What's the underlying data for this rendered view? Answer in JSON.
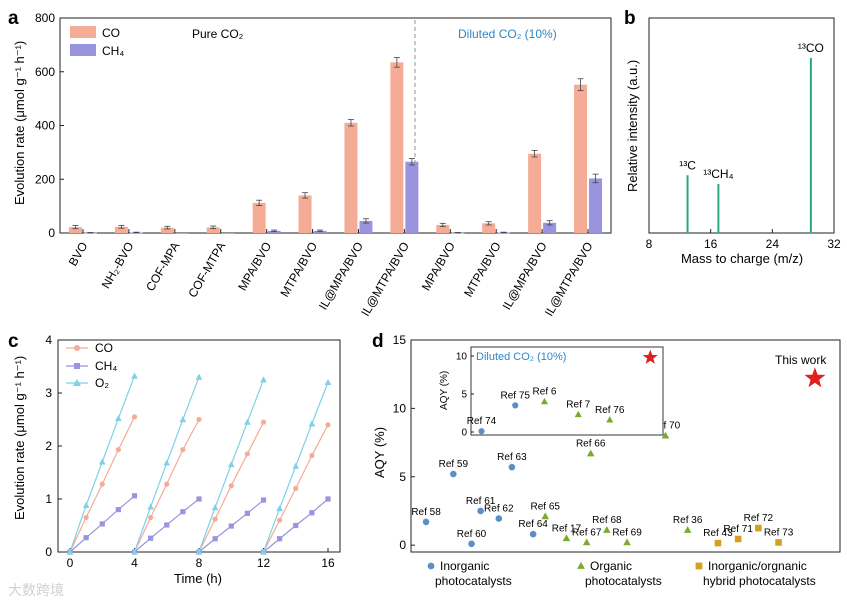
{
  "colors": {
    "co": "#f4ac96",
    "ch4": "#9a93dd",
    "o2": "#7fd1e8",
    "ms": "#2aa882",
    "inorganic": "#5b8fc7",
    "organic": "#7aab2a",
    "hybrid": "#d4a020",
    "star": "#e11f1f",
    "diluted": "#2f86c6"
  },
  "chart_data": [
    {
      "id": "a",
      "panel_label": "a",
      "type": "bar",
      "ylabel": "Evolution rate (μmol g⁻¹ h⁻¹)",
      "ylim": [
        0,
        800
      ],
      "yticks": [
        "0",
        "200",
        "400",
        "600",
        "800"
      ],
      "categories": [
        "BVO",
        "NH₂-BVO",
        "COF-MPA",
        "COF-MTPA",
        "MPA/BVO",
        "MTPA/BVO",
        "IL@MPA/BVO",
        "IL@MTPA/BVO",
        "MPA/BVO",
        "MTPA/BVO",
        "IL@MPA/BVO",
        "IL@MTPA/BVO"
      ],
      "series": [
        {
          "name": "CO",
          "values": [
            22,
            23,
            20,
            21,
            112,
            140,
            410,
            635,
            30,
            36,
            295,
            552
          ],
          "errors": [
            6,
            5,
            5,
            5,
            10,
            10,
            12,
            18,
            6,
            6,
            12,
            22
          ]
        },
        {
          "name": "CH₄",
          "values": [
            1,
            2,
            0,
            0,
            8,
            8,
            45,
            265,
            1,
            2,
            38,
            203
          ],
          "errors": [
            1,
            1,
            0,
            0,
            3,
            3,
            8,
            12,
            1,
            1,
            8,
            16
          ]
        }
      ],
      "annotations": {
        "pure": "Pure CO₂",
        "diluted": "Diluted CO₂ (10%)"
      }
    },
    {
      "id": "b",
      "panel_label": "b",
      "type": "bar",
      "xlabel": "Mass to charge (m/z)",
      "ylabel": "Relative intensity (a.u.)",
      "xlim": [
        8,
        32
      ],
      "xticks": [
        "8",
        "16",
        "24",
        "32"
      ],
      "peaks": [
        {
          "x": 13,
          "y": 0.33,
          "label": "¹³C"
        },
        {
          "x": 17,
          "y": 0.28,
          "label": "¹³CH₄"
        },
        {
          "x": 29,
          "y": 1.0,
          "label": "¹³CO"
        }
      ]
    },
    {
      "id": "c",
      "panel_label": "c",
      "type": "line",
      "xlabel": "Time (h)",
      "ylabel": "Evolution rate (μmol g⁻¹ h⁻¹)",
      "xlim": [
        0,
        16
      ],
      "ylim": [
        0,
        4
      ],
      "xticks": [
        "0",
        "4",
        "8",
        "12",
        "16"
      ],
      "yticks": [
        "0",
        "1",
        "2",
        "3",
        "4"
      ],
      "series": [
        {
          "name": "CO",
          "cycles": [
            [
              [
                0,
                0
              ],
              [
                1,
                0.65
              ],
              [
                2,
                1.28
              ],
              [
                3,
                1.93
              ],
              [
                4,
                2.55
              ]
            ],
            [
              [
                4,
                0
              ],
              [
                5,
                0.65
              ],
              [
                6,
                1.28
              ],
              [
                7,
                1.93
              ],
              [
                8,
                2.5
              ]
            ],
            [
              [
                8,
                0
              ],
              [
                9,
                0.62
              ],
              [
                10,
                1.25
              ],
              [
                11,
                1.85
              ],
              [
                12,
                2.45
              ]
            ],
            [
              [
                12,
                0
              ],
              [
                13,
                0.6
              ],
              [
                14,
                1.2
              ],
              [
                15,
                1.82
              ],
              [
                16,
                2.4
              ]
            ]
          ]
        },
        {
          "name": "CH₄",
          "cycles": [
            [
              [
                0,
                0
              ],
              [
                1,
                0.27
              ],
              [
                2,
                0.53
              ],
              [
                3,
                0.8
              ],
              [
                4,
                1.06
              ]
            ],
            [
              [
                4,
                0
              ],
              [
                5,
                0.26
              ],
              [
                6,
                0.51
              ],
              [
                7,
                0.76
              ],
              [
                8,
                1.0
              ]
            ],
            [
              [
                8,
                0
              ],
              [
                9,
                0.25
              ],
              [
                10,
                0.49
              ],
              [
                11,
                0.73
              ],
              [
                12,
                0.98
              ]
            ],
            [
              [
                12,
                0
              ],
              [
                13,
                0.25
              ],
              [
                14,
                0.5
              ],
              [
                15,
                0.74
              ],
              [
                16,
                1.0
              ]
            ]
          ]
        },
        {
          "name": "O₂",
          "cycles": [
            [
              [
                0,
                0
              ],
              [
                1,
                0.88
              ],
              [
                2,
                1.7
              ],
              [
                3,
                2.52
              ],
              [
                4,
                3.32
              ]
            ],
            [
              [
                4,
                0
              ],
              [
                5,
                0.85
              ],
              [
                6,
                1.68
              ],
              [
                7,
                2.5
              ],
              [
                8,
                3.3
              ]
            ],
            [
              [
                8,
                0
              ],
              [
                9,
                0.84
              ],
              [
                10,
                1.65
              ],
              [
                11,
                2.45
              ],
              [
                12,
                3.25
              ]
            ],
            [
              [
                12,
                0
              ],
              [
                13,
                0.82
              ],
              [
                14,
                1.62
              ],
              [
                15,
                2.42
              ],
              [
                16,
                3.2
              ]
            ]
          ]
        }
      ]
    },
    {
      "id": "d",
      "panel_label": "d",
      "type": "scatter",
      "ylabel": "AQY (%)",
      "ylim": [
        -0.5,
        15
      ],
      "yticks": [
        "0",
        "5",
        "10",
        "15"
      ],
      "points": [
        {
          "label": "Ref 58",
          "x": 0.35,
          "y": 1.7,
          "cls": "inorganic"
        },
        {
          "label": "Ref 59",
          "x": 1.7,
          "y": 5.2,
          "cls": "inorganic"
        },
        {
          "label": "Ref 60",
          "x": 2.6,
          "y": 0.1,
          "cls": "inorganic"
        },
        {
          "label": "Ref 61",
          "x": 3.05,
          "y": 2.5,
          "cls": "inorganic"
        },
        {
          "label": "Ref 62",
          "x": 3.95,
          "y": 1.95,
          "cls": "inorganic"
        },
        {
          "label": "Ref 63",
          "x": 4.6,
          "y": 5.7,
          "cls": "inorganic"
        },
        {
          "label": "Ref 64",
          "x": 5.65,
          "y": 0.8,
          "cls": "inorganic"
        },
        {
          "label": "Ref 65",
          "x": 6.25,
          "y": 2.1,
          "cls": "organic"
        },
        {
          "label": "Ref 17",
          "x": 7.3,
          "y": 0.5,
          "cls": "organic"
        },
        {
          "label": "Ref 66",
          "x": 8.5,
          "y": 6.7,
          "cls": "organic"
        },
        {
          "label": "Ref 67",
          "x": 8.3,
          "y": 0.2,
          "cls": "organic"
        },
        {
          "label": "Ref 68",
          "x": 9.3,
          "y": 1.1,
          "cls": "organic"
        },
        {
          "label": "Ref 69",
          "x": 10.3,
          "y": 0.2,
          "cls": "organic"
        },
        {
          "label": "Ref 70",
          "x": 12.2,
          "y": 8.0,
          "cls": "organic"
        },
        {
          "label": "Ref 36",
          "x": 13.3,
          "y": 1.1,
          "cls": "organic"
        },
        {
          "label": "Ref 43",
          "x": 14.8,
          "y": 0.15,
          "cls": "hybrid"
        },
        {
          "label": "Ref 71",
          "x": 15.8,
          "y": 0.45,
          "cls": "hybrid"
        },
        {
          "label": "Ref 72",
          "x": 16.8,
          "y": 1.25,
          "cls": "hybrid"
        },
        {
          "label": "Ref 73",
          "x": 17.8,
          "y": 0.2,
          "cls": "hybrid"
        },
        {
          "label": "This work",
          "x": 19.6,
          "y": 12.2,
          "cls": "star"
        }
      ],
      "inset": {
        "title": "Diluted CO₂ (10%)",
        "ylabel": "AQY (%)",
        "ylim": [
          0,
          10
        ],
        "yticks": [
          "0",
          "5",
          "10"
        ],
        "points": [
          {
            "label": "Ref 74",
            "x": 0.2,
            "y": 0.1,
            "cls": "inorganic"
          },
          {
            "label": "Ref 75",
            "x": 1.7,
            "y": 3.5,
            "cls": "inorganic"
          },
          {
            "label": "Ref 6",
            "x": 3.0,
            "y": 4.0,
            "cls": "organic"
          },
          {
            "label": "Ref 7",
            "x": 4.5,
            "y": 2.3,
            "cls": "organic"
          },
          {
            "label": "Ref 76",
            "x": 5.9,
            "y": 1.6,
            "cls": "organic"
          },
          {
            "label": "",
            "x": 7.7,
            "y": 9.8,
            "cls": "star"
          }
        ]
      },
      "legend": [
        {
          "cls": "inorganic",
          "line1": "Inorganic",
          "line2": "photocatalysts"
        },
        {
          "cls": "organic",
          "line1": "Organic",
          "line2": "photocatalysts"
        },
        {
          "cls": "hybrid",
          "line1": "Inorganic/orgnanic",
          "line2": "hybrid photocatalysts"
        }
      ]
    }
  ],
  "watermark": "大数跨境"
}
